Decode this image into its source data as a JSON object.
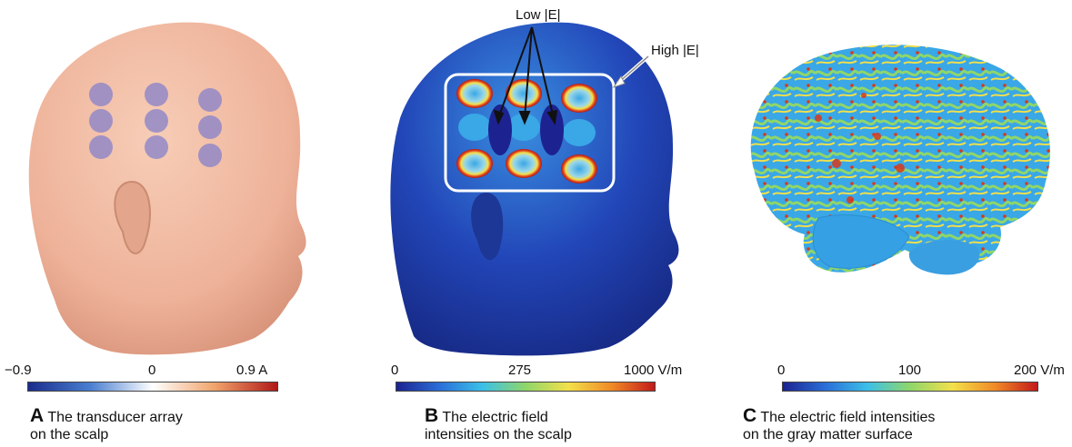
{
  "panels": [
    {
      "letter": "A",
      "caption_line1": "The transducer array",
      "caption_line2": "on the scalp",
      "ticks": [
        "−0.9",
        "0",
        "0.9 A"
      ]
    },
    {
      "letter": "B",
      "caption_line1": "The electric field",
      "caption_line2": "intensities on the scalp",
      "ticks": [
        "0",
        "275",
        "1000 V/m"
      ],
      "annotation_low": "Low |E|",
      "annotation_high": "High |E|"
    },
    {
      "letter": "C",
      "caption_line1": "The electric field intensities",
      "caption_line2": "on the gray matter surface",
      "ticks": [
        "0",
        "100",
        "200 V/m"
      ]
    }
  ],
  "colors": {
    "skin": "#f2b9a0",
    "electrode": "#8c84c8",
    "field_low": "#1c2fa0",
    "field_high": "#c21a1a"
  }
}
